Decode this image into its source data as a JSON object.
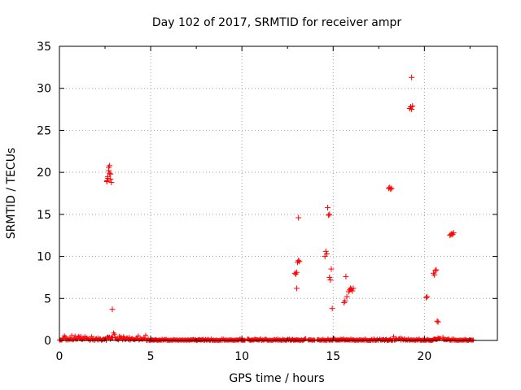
{
  "chart_data": {
    "type": "scatter",
    "title": "Day 102 of 2017, SRMTID for receiver ampr",
    "xlabel": "GPS time / hours",
    "ylabel": "SRMTID / TECUs",
    "xlim": [
      0,
      24
    ],
    "ylim": [
      0,
      35
    ],
    "xticks": [
      0,
      5,
      10,
      15,
      20
    ],
    "yticks": [
      0,
      5,
      10,
      15,
      20,
      25,
      30,
      35
    ],
    "grid": true,
    "legend": "none",
    "marker": "plus",
    "color": "#ff0000",
    "series": [
      {
        "x": [
          2.6,
          2.65,
          2.7,
          2.75,
          2.8,
          2.85,
          2.6,
          2.7,
          2.8,
          2.75,
          2.65,
          2.9,
          12.9,
          12.95,
          13.0,
          13.05,
          13.1,
          13.15,
          13.0,
          13.1,
          14.6,
          14.65,
          14.7,
          14.75,
          14.8,
          14.55,
          14.85,
          14.9,
          14.95,
          14.8,
          15.6,
          15.65,
          15.7,
          15.75,
          15.85,
          15.9,
          15.95,
          16.0,
          16.05,
          16.1,
          18.05,
          18.1,
          18.15,
          18.2,
          19.2,
          19.25,
          19.3,
          19.35,
          19.3,
          20.1,
          20.15,
          20.5,
          20.55,
          20.6,
          20.65,
          20.7,
          20.75,
          21.4,
          21.45,
          21.5,
          21.55,
          21.6
        ],
        "y": [
          19.0,
          19.5,
          20.2,
          20.8,
          19.8,
          18.8,
          18.9,
          20.6,
          19.2,
          19.9,
          19.3,
          3.7,
          8.0,
          7.9,
          8.1,
          9.3,
          9.5,
          9.4,
          6.2,
          14.6,
          10.6,
          10.3,
          15.8,
          14.9,
          15.0,
          10.0,
          7.2,
          8.5,
          3.8,
          7.5,
          4.5,
          4.7,
          7.6,
          5.2,
          5.8,
          6.0,
          6.2,
          6.1,
          5.9,
          6.2,
          18.1,
          18.2,
          18.0,
          18.1,
          27.6,
          27.8,
          27.5,
          27.9,
          31.3,
          5.1,
          5.2,
          8.0,
          7.8,
          8.3,
          8.4,
          2.3,
          2.2,
          12.5,
          12.6,
          12.7,
          12.6,
          12.8
        ]
      },
      {
        "x_range": [
          0,
          22.7
        ],
        "y_max": 0.5,
        "gap_ranges": [
          [
            10.2,
            10.3
          ],
          [
            13.5,
            13.6
          ],
          [
            14.0,
            14.1
          ],
          [
            17.5,
            17.55
          ],
          [
            18.5,
            18.55
          ],
          [
            20.9,
            21.0
          ]
        ],
        "active_ranges": [
          [
            0.1,
            4.8,
            0.7
          ],
          [
            2.4,
            3.6,
            1.3
          ],
          [
            3.6,
            4.1,
            1.0
          ],
          [
            18.2,
            19.1,
            0.5
          ],
          [
            20.5,
            21.6,
            0.4
          ]
        ]
      }
    ]
  }
}
